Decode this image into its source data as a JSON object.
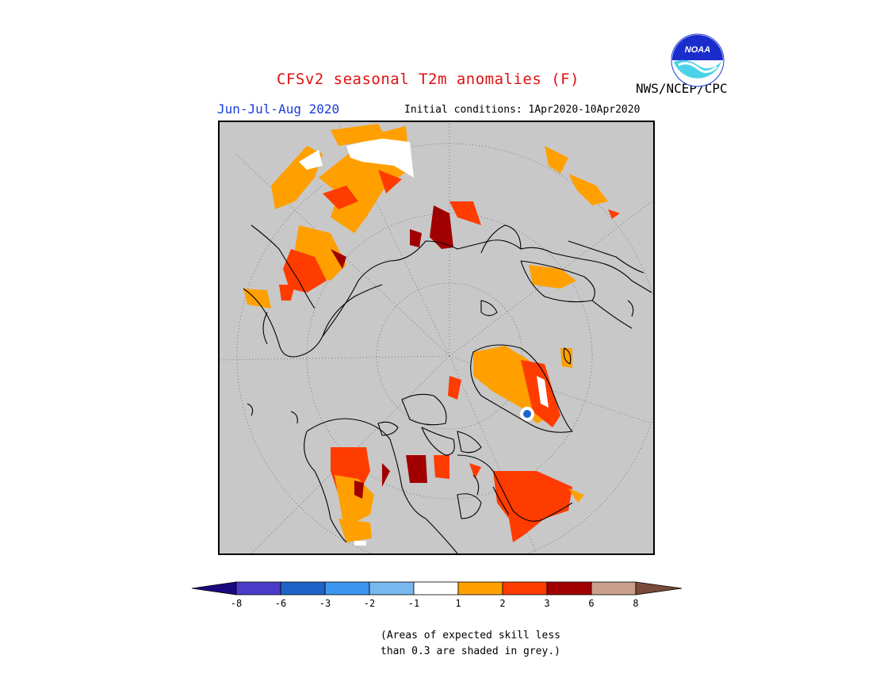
{
  "header": {
    "title": "CFSv2 seasonal T2m anomalies (F)",
    "period": "Jun-Jul-Aug 2020",
    "initial_conditions": "Initial conditions: 1Apr2020-10Apr2020",
    "agency": "NWS/NCEP/CPC",
    "logo_text": "NOAA"
  },
  "colors": {
    "title": "#e01010",
    "period": "#1a3cd8",
    "map_background": "#c8c8c8",
    "land_outline": "#000000"
  },
  "colorbar": {
    "tick_labels": [
      "-8",
      "-6",
      "-3",
      "-2",
      "-1",
      "1",
      "2",
      "3",
      "6",
      "8"
    ],
    "bins": [
      {
        "range": "< -8",
        "color": "#1a0880"
      },
      {
        "range": "-8 to -6",
        "color": "#4a3cc8"
      },
      {
        "range": "-6 to -3",
        "color": "#1e64c8"
      },
      {
        "range": "-3 to -2",
        "color": "#3c96f0"
      },
      {
        "range": "-2 to -1",
        "color": "#78b8f0"
      },
      {
        "range": "-1 to 1",
        "color": "#ffffff"
      },
      {
        "range": "1 to 2",
        "color": "#ffa000"
      },
      {
        "range": "2 to 3",
        "color": "#ff3c00"
      },
      {
        "range": "3 to 6",
        "color": "#a00000"
      },
      {
        "range": "6 to 8",
        "color": "#c8a08c"
      },
      {
        "range": "> 8",
        "color": "#7a4a3a"
      }
    ]
  },
  "footnote": {
    "line1": "(Areas of expected skill less",
    "line2": "than 0.3 are shaded in grey.)"
  },
  "map": {
    "projection": "north polar stereographic",
    "grey_meaning": "expected skill less than 0.3"
  }
}
